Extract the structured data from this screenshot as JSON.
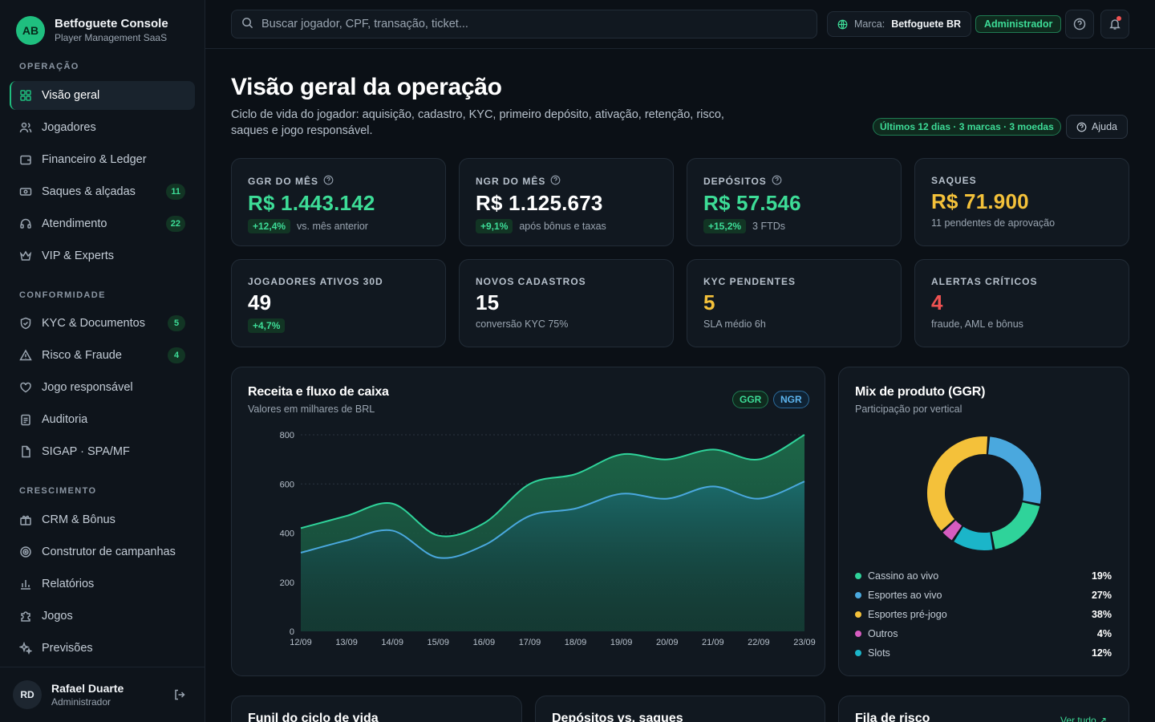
{
  "brand": {
    "initials": "AB",
    "name": "Betfoguete Console",
    "subtitle": "Player Management SaaS"
  },
  "sidebar": {
    "sections": [
      "OPERAÇÃO",
      "CONFORMIDADE",
      "CRESCIMENTO"
    ],
    "items": [
      {
        "label": "Visão geral",
        "icon": "grid-icon",
        "active": true
      },
      {
        "label": "Jogadores",
        "icon": "users-icon"
      },
      {
        "label": "Financeiro & Ledger",
        "icon": "wallet-icon"
      },
      {
        "label": "Saques & alçadas",
        "icon": "cash-icon",
        "badge": "11"
      },
      {
        "label": "Atendimento",
        "icon": "headset-icon",
        "badge": "22"
      },
      {
        "label": "VIP & Experts",
        "icon": "crown-icon"
      },
      {
        "label": "KYC & Documentos",
        "icon": "shield-icon",
        "badge": "5"
      },
      {
        "label": "Risco & Fraude",
        "icon": "warning-icon",
        "badge": "4"
      },
      {
        "label": "Jogo responsável",
        "icon": "heart-hand-icon"
      },
      {
        "label": "Auditoria",
        "icon": "clipboard-icon"
      },
      {
        "label": "SIGAP · SPA/MF",
        "icon": "document-icon"
      },
      {
        "label": "CRM & Bônus",
        "icon": "gift-icon"
      },
      {
        "label": "Construtor de campanhas",
        "icon": "target-icon"
      },
      {
        "label": "Relatórios",
        "icon": "bar-chart-icon"
      },
      {
        "label": "Jogos",
        "icon": "puzzle-icon"
      },
      {
        "label": "Previsões",
        "icon": "sparkle-icon"
      }
    ]
  },
  "user": {
    "initials": "RD",
    "name": "Rafael Duarte",
    "role": "Administrador"
  },
  "topbar": {
    "search_placeholder": "Buscar jogador, CPF, transação, ticket...",
    "brand_label": "Marca:",
    "brand_value": "Betfoguete BR",
    "role": "Administrador"
  },
  "header": {
    "title": "Visão geral da operação",
    "description": "Ciclo de vida do jogador: aquisição, cadastro, KYC, primeiro depósito, ativação, retenção, risco, saques e jogo responsável.",
    "period": "Últimos 12 dias · 3 marcas · 3 moedas",
    "help": "Ajuda"
  },
  "kpis": [
    {
      "label": "GGR DO MÊS",
      "value": "R$ 1.443.142",
      "delta": "+12,4%",
      "sub": "vs. mês anterior",
      "color": "#3ddc97"
    },
    {
      "label": "NGR DO MÊS",
      "value": "R$ 1.125.673",
      "delta": "+9,1%",
      "sub": "após bônus e taxas",
      "color": "#ffffff"
    },
    {
      "label": "DEPÓSITOS",
      "value": "R$ 57.546",
      "delta": "+15,2%",
      "sub": "3 FTDs",
      "color": "#3ddc97"
    },
    {
      "label": "SAQUES",
      "value": "R$ 71.900",
      "sub": "11 pendentes de aprovação",
      "color": "#f4c13a"
    },
    {
      "label": "JOGADORES ATIVOS 30D",
      "value": "49",
      "delta": "+4,7%",
      "sub": "",
      "color": "#ffffff"
    },
    {
      "label": "NOVOS CADASTROS",
      "value": "15",
      "sub": "conversão KYC 75%",
      "color": "#ffffff"
    },
    {
      "label": "KYC PENDENTES",
      "value": "5",
      "sub": "SLA médio 6h",
      "color": "#f4c13a"
    },
    {
      "label": "ALERTAS CRÍTICOS",
      "value": "4",
      "sub": "fraude, AML e bônus",
      "color": "#f05252"
    }
  ],
  "revenue_panel": {
    "title": "Receita e fluxo de caixa",
    "subtitle": "Valores em milhares de BRL",
    "pill_ggr": "GGR",
    "pill_ngr": "NGR"
  },
  "mix_panel": {
    "title": "Mix de produto (GGR)",
    "subtitle": "Participação por vertical"
  },
  "bottom_panels": {
    "funnel": "Funil do ciclo de vida",
    "deposits": "Depósitos vs. saques",
    "risk": "Fila de risco",
    "see_all": "Ver tudo ↗"
  },
  "chart_data": [
    {
      "type": "area",
      "title": "Receita e fluxo de caixa",
      "subtitle": "Valores em milhares de BRL",
      "x": [
        "12/09",
        "13/09",
        "14/09",
        "15/09",
        "16/09",
        "17/09",
        "18/09",
        "19/09",
        "20/09",
        "21/09",
        "22/09",
        "23/09"
      ],
      "yticks": [
        0,
        200,
        400,
        600,
        800
      ],
      "ylim": [
        0,
        800
      ],
      "series": [
        {
          "name": "GGR",
          "color": "#2fd39a",
          "values": [
            420,
            470,
            520,
            390,
            440,
            600,
            640,
            720,
            700,
            740,
            700,
            800
          ]
        },
        {
          "name": "NGR",
          "color": "#4aa8de",
          "values": [
            320,
            370,
            410,
            300,
            350,
            470,
            500,
            560,
            540,
            590,
            540,
            610
          ]
        }
      ]
    },
    {
      "type": "pie",
      "title": "Mix de produto (GGR)",
      "subtitle": "Participação por vertical",
      "categories": [
        "Cassino ao vivo",
        "Esportes ao vivo",
        "Esportes pré-jogo",
        "Outros",
        "Slots"
      ],
      "labels": [
        "19%",
        "27%",
        "38%",
        "4%",
        "12%"
      ],
      "values": [
        19,
        27,
        38,
        4,
        12
      ],
      "colors": [
        "#2fd39a",
        "#4aa8de",
        "#f4c13a",
        "#d65cc0",
        "#1bb5c9"
      ],
      "donut_order": [
        1,
        0,
        4,
        3,
        2
      ]
    }
  ]
}
